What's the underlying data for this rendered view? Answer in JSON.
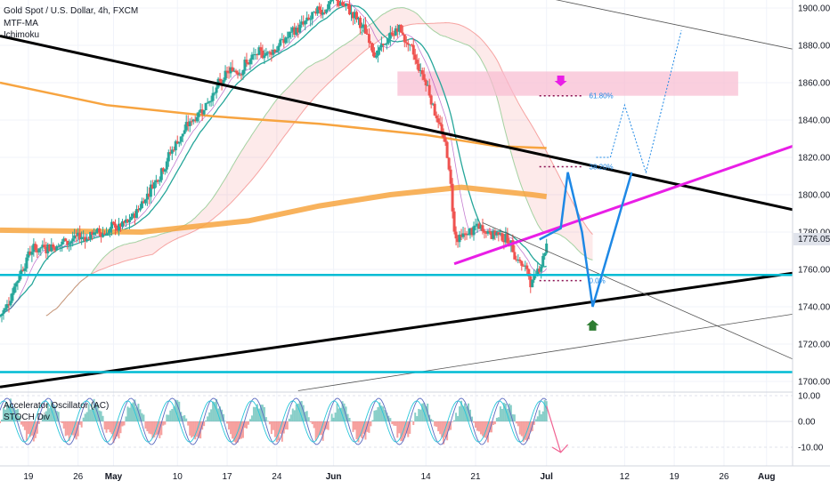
{
  "header": {
    "title": "Gold Spot / U.S. Dollar, 4h, FXCM",
    "indicators": [
      "MTF-MA",
      "Ichimoku"
    ]
  },
  "oscillator": {
    "labels": [
      "Accelerator Oscillator (AC)",
      "STOCH Div"
    ],
    "ticks": [
      "10.00",
      "0.00",
      "-10.00"
    ]
  },
  "last_price": "1776.05",
  "fib_levels": [
    "61.80%",
    "38.20%",
    "0.0%"
  ],
  "colors": {
    "up": "#26a69a",
    "down": "#ef5350",
    "trendline": "#000000",
    "support": "#00bcd4",
    "magenta": "#e91ee6",
    "projection": "#1e88e5",
    "ma_long": "#f7a440",
    "zone": "#f8bbd0"
  },
  "chart_data": {
    "type": "candlestick",
    "title": "Gold Spot / U.S. Dollar, 4h, FXCM",
    "ylim": [
      1680,
      1910
    ],
    "y_ticks": [
      1900,
      1880,
      1860,
      1840,
      1820,
      1800,
      1780,
      1760,
      1740,
      1720,
      1700
    ],
    "x_ticks": [
      "19",
      "26",
      "May",
      "10",
      "17",
      "24",
      "Jun",
      "14",
      "21",
      "Jul",
      "12",
      "19",
      "26",
      "Aug"
    ],
    "price_anchors": [
      {
        "date": "Apr 15",
        "price": 1735
      },
      {
        "date": "Apr 19",
        "price": 1770
      },
      {
        "date": "Apr 26",
        "price": 1777
      },
      {
        "date": "May 3",
        "price": 1784
      },
      {
        "date": "May 10",
        "price": 1830
      },
      {
        "date": "May 17",
        "price": 1865
      },
      {
        "date": "May 24",
        "price": 1880
      },
      {
        "date": "Jun 1",
        "price": 1905
      },
      {
        "date": "Jun 4",
        "price": 1895
      },
      {
        "date": "Jun 7",
        "price": 1875
      },
      {
        "date": "Jun 10",
        "price": 1890
      },
      {
        "date": "Jun 14",
        "price": 1860
      },
      {
        "date": "Jun 17",
        "price": 1820
      },
      {
        "date": "Jun 18",
        "price": 1775
      },
      {
        "date": "Jun 21",
        "price": 1782
      },
      {
        "date": "Jun 25",
        "price": 1778
      },
      {
        "date": "Jun 29",
        "price": 1752
      },
      {
        "date": "Jul 1",
        "price": 1776
      }
    ],
    "zones": [
      {
        "type": "resistance",
        "from": 1853,
        "to": 1866
      }
    ],
    "horizontal_levels": [
      1757,
      1705
    ],
    "fibonacci": [
      {
        "label": "61.80%",
        "price": 1853
      },
      {
        "label": "38.20%",
        "price": 1815
      },
      {
        "label": "0.0%",
        "price": 1754
      }
    ],
    "projection_path": [
      1776,
      1782,
      1812,
      1780,
      1740,
      1812
    ],
    "grid": true
  }
}
